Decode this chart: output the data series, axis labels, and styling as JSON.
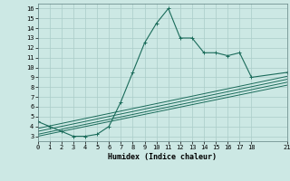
{
  "main_x": [
    0,
    1,
    2,
    3,
    4,
    5,
    6,
    7,
    8,
    9,
    10,
    11,
    12,
    13,
    14,
    15,
    16,
    17,
    18,
    21
  ],
  "main_y": [
    4.5,
    4.0,
    3.5,
    3.0,
    3.0,
    3.2,
    4.0,
    6.5,
    9.5,
    12.5,
    14.5,
    16.0,
    13.0,
    13.0,
    11.5,
    11.5,
    11.2,
    11.5,
    9.0,
    9.5
  ],
  "ref_lines": [
    {
      "x": [
        0,
        21
      ],
      "y": [
        3.0,
        8.2
      ]
    },
    {
      "x": [
        0,
        21
      ],
      "y": [
        3.2,
        8.5
      ]
    },
    {
      "x": [
        0,
        21
      ],
      "y": [
        3.5,
        8.8
      ]
    },
    {
      "x": [
        0,
        21
      ],
      "y": [
        3.8,
        9.1
      ]
    }
  ],
  "bg_color": "#cce8e4",
  "grid_color": "#aaccc8",
  "line_color": "#1a6b5a",
  "xlabel": "Humidex (Indice chaleur)",
  "xlim": [
    0,
    21
  ],
  "ylim": [
    2.5,
    16.5
  ],
  "xticks": [
    0,
    1,
    2,
    3,
    4,
    5,
    6,
    7,
    8,
    9,
    10,
    11,
    12,
    13,
    14,
    15,
    16,
    17,
    18,
    21
  ],
  "yticks": [
    3,
    4,
    5,
    6,
    7,
    8,
    9,
    10,
    11,
    12,
    13,
    14,
    15,
    16
  ]
}
